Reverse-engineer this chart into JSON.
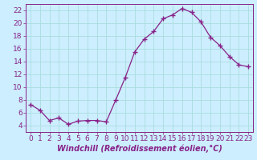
{
  "x": [
    0,
    1,
    2,
    3,
    4,
    5,
    6,
    7,
    8,
    9,
    10,
    11,
    12,
    13,
    14,
    15,
    16,
    17,
    18,
    19,
    20,
    21,
    22,
    23
  ],
  "y": [
    7.3,
    6.4,
    4.8,
    5.2,
    4.2,
    4.7,
    4.8,
    4.8,
    4.6,
    8.0,
    11.5,
    15.5,
    17.5,
    18.7,
    20.7,
    21.3,
    22.3,
    21.7,
    20.2,
    17.8,
    16.5,
    14.8,
    13.5,
    13.2
  ],
  "line_color": "#882288",
  "marker": "+",
  "marker_size": 4,
  "marker_linewidth": 1.0,
  "bg_color": "#cceeff",
  "grid_color": "#aadddd",
  "xlabel": "Windchill (Refroidissement éolien,°C)",
  "xlabel_color": "#882288",
  "xlabel_fontsize": 7,
  "tick_color": "#882288",
  "tick_fontsize": 6.5,
  "ylim": [
    3,
    23
  ],
  "xlim": [
    -0.5,
    23.5
  ],
  "yticks": [
    4,
    6,
    8,
    10,
    12,
    14,
    16,
    18,
    20,
    22
  ],
  "xticks": [
    0,
    1,
    2,
    3,
    4,
    5,
    6,
    7,
    8,
    9,
    10,
    11,
    12,
    13,
    14,
    15,
    16,
    17,
    18,
    19,
    20,
    21,
    22,
    23
  ]
}
